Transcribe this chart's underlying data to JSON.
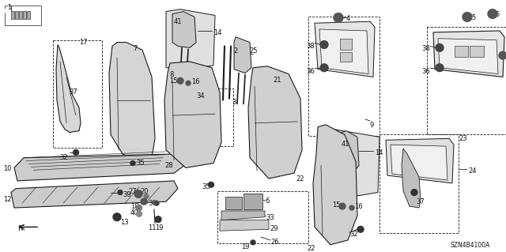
{
  "bg_color": "#ffffff",
  "line_color": "#1a1a1a",
  "text_color": "#111111",
  "fig_width": 6.4,
  "fig_height": 3.19,
  "diagram_code": "SZN4B4100A"
}
